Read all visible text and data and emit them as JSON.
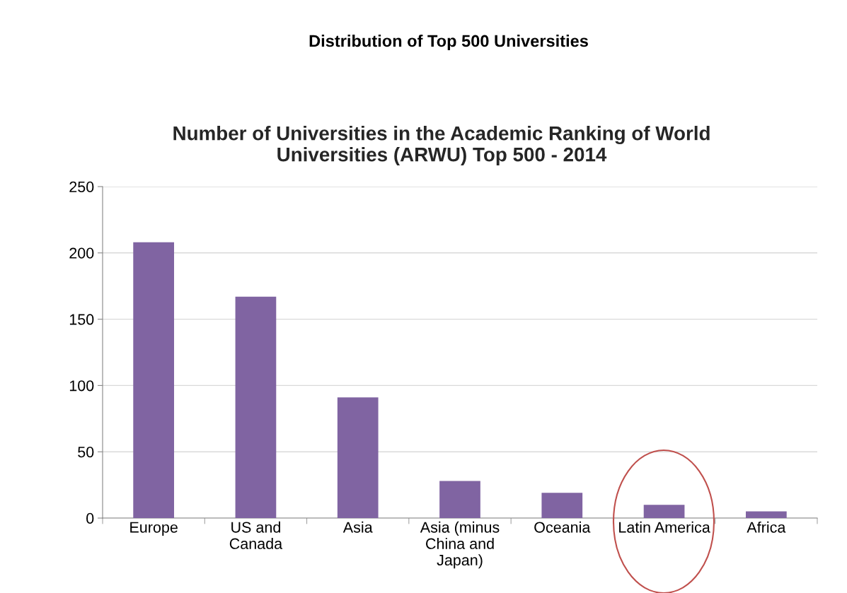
{
  "chart_data": {
    "type": "bar",
    "title": "Distribution of Top 500 Universities",
    "subtitle": "Number of Universities in the Academic Ranking of World\nUniversities (ARWU) Top 500 - 2014",
    "categories": [
      "Europe",
      "US and\nCanada",
      "Asia",
      "Asia (minus\nChina and\nJapan)",
      "Oceania",
      "Latin America",
      "Africa"
    ],
    "values": [
      208,
      167,
      91,
      28,
      19,
      10,
      5
    ],
    "color": "#8064a2",
    "ylim": [
      0,
      250
    ],
    "yticks": [
      0,
      50,
      100,
      150,
      200,
      250
    ],
    "grid": "y"
  }
}
